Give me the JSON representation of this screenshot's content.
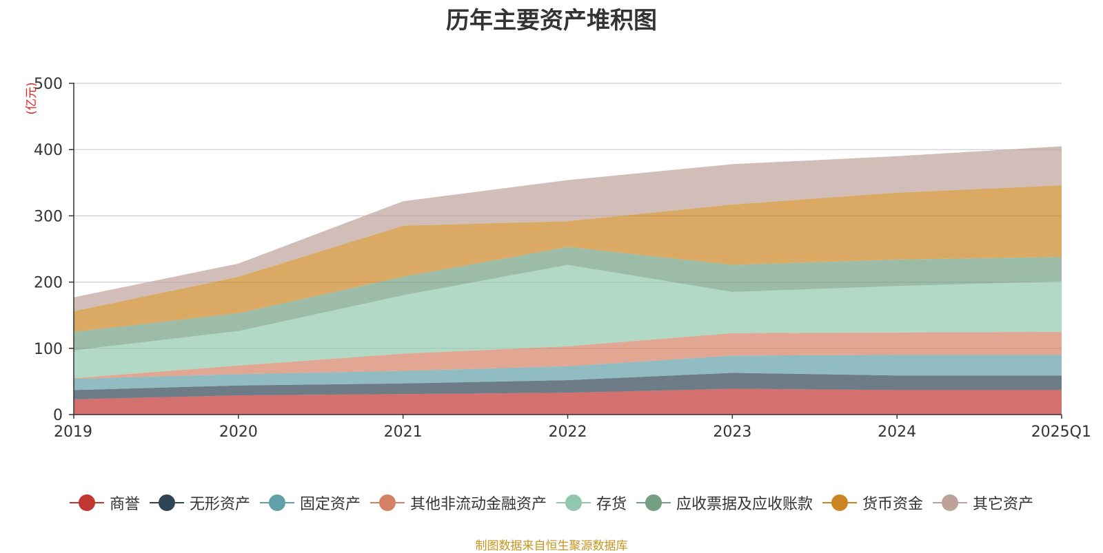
{
  "title": "历年主要资产堆积图",
  "source": "制图数据来自恒生聚源数据库",
  "chart_data": {
    "type": "area",
    "stacked": true,
    "title": "历年主要资产堆积图",
    "ylabel": "(亿元)",
    "xlabel": "",
    "ylim": [
      0,
      500
    ],
    "yticks": [
      0,
      100,
      200,
      300,
      400,
      500
    ],
    "grid": true,
    "legend_position": "bottom",
    "x": [
      "2019",
      "2020",
      "2021",
      "2022",
      "2023",
      "2024",
      "2025Q1"
    ],
    "series": [
      {
        "name": "商誉",
        "color": "#c23531",
        "values": [
          23,
          29,
          31,
          33,
          39,
          37,
          37
        ]
      },
      {
        "name": "无形资产",
        "color": "#2f4554",
        "values": [
          14,
          15,
          16,
          19,
          24,
          22,
          22
        ]
      },
      {
        "name": "固定资产",
        "color": "#61a0a8",
        "values": [
          17,
          17,
          19,
          21,
          26,
          31,
          31
        ]
      },
      {
        "name": "其他非流动金融资产",
        "color": "#d48265",
        "values": [
          1,
          13,
          26,
          30,
          34,
          34,
          35
        ]
      },
      {
        "name": "存货",
        "color": "#91c7ae",
        "values": [
          42,
          52,
          88,
          123,
          62,
          70,
          76
        ]
      },
      {
        "name": "应收票据及应收账款",
        "color": "#749f83",
        "values": [
          28,
          27,
          28,
          27,
          41,
          40,
          37
        ]
      },
      {
        "name": "货币资金",
        "color": "#ca8622",
        "values": [
          31,
          55,
          77,
          39,
          91,
          101,
          108
        ]
      },
      {
        "name": "其它资产",
        "color": "#bda29a",
        "values": [
          21,
          20,
          37,
          62,
          61,
          55,
          59
        ]
      }
    ]
  }
}
